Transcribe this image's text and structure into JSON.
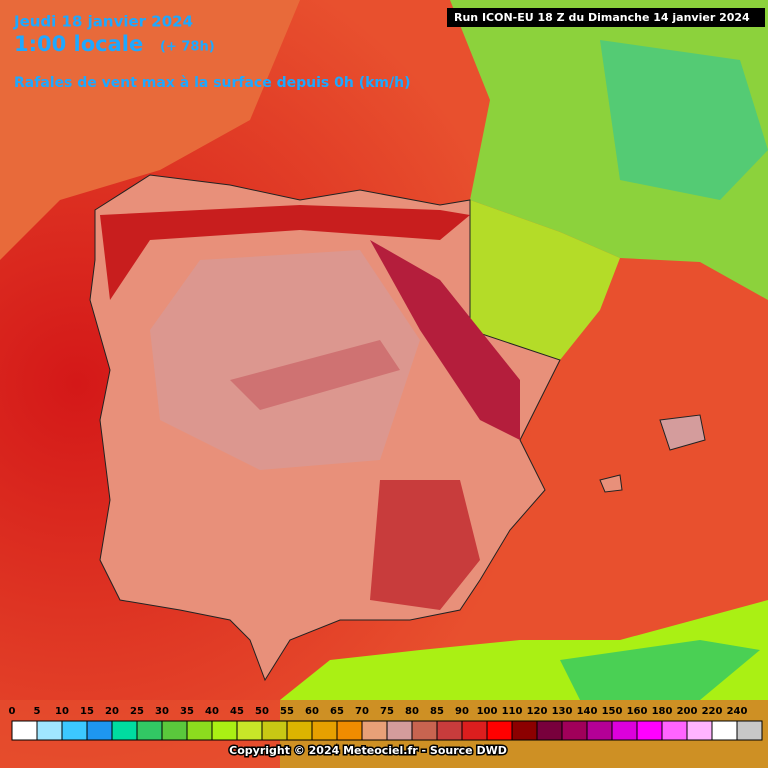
{
  "header": {
    "date": "Jeudi 18 janvier 2024",
    "time": "1:00 locale",
    "lead": "(+ 78h)",
    "title": "Rafales de vent max à la surface depuis 0h (km/h)",
    "run": "Run ICON-EU 18 Z du Dimanche 14 janvier 2024"
  },
  "legend": {
    "ticks": [
      0,
      5,
      10,
      15,
      20,
      25,
      30,
      35,
      40,
      45,
      50,
      55,
      60,
      65,
      70,
      75,
      80,
      85,
      90,
      100,
      110,
      120,
      130,
      140,
      150,
      160,
      180,
      200,
      220,
      240
    ],
    "colors": [
      "#ffffff",
      "#a0e6ff",
      "#3cc8ff",
      "#1e96f0",
      "#00dca0",
      "#32c864",
      "#5ac83c",
      "#8cdc1e",
      "#aaf014",
      "#c8e628",
      "#c8c814",
      "#dcb400",
      "#e6a000",
      "#f08c00",
      "#e8a078",
      "#d49c9c",
      "#c86450",
      "#c83c3c",
      "#dc1e1e",
      "#ff0000",
      "#8c0000",
      "#78003c",
      "#a0005a",
      "#b40096",
      "#dc00dc",
      "#ff00ff",
      "#ff64ff",
      "#ffb4ff",
      "#ffffff",
      "#c8c8c8"
    ]
  },
  "footer": {
    "copyright": "Copyright © 2024 Meteociel.fr - Source DWD"
  }
}
